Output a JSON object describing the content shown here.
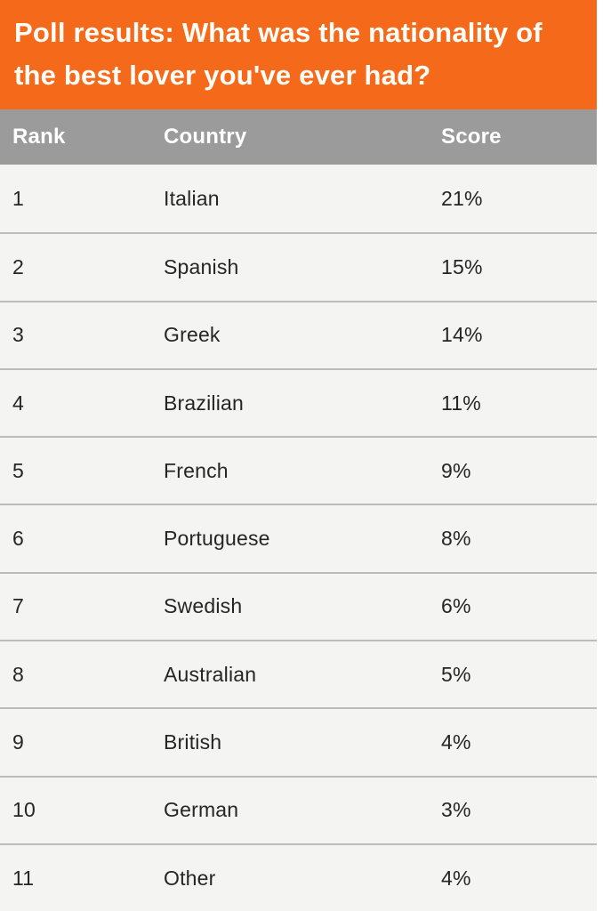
{
  "title": "Poll results: What was the nationality of the best lover you've ever had?",
  "table": {
    "columns": [
      "Rank",
      "Country",
      "Score"
    ],
    "rows": [
      {
        "rank": "1",
        "country": "Italian",
        "score": "21%"
      },
      {
        "rank": "2",
        "country": "Spanish",
        "score": "15%"
      },
      {
        "rank": "3",
        "country": "Greek",
        "score": "14%"
      },
      {
        "rank": "4",
        "country": "Brazilian",
        "score": "11%"
      },
      {
        "rank": "5",
        "country": "French",
        "score": "9%"
      },
      {
        "rank": "6",
        "country": "Portuguese",
        "score": "8%"
      },
      {
        "rank": "7",
        "country": "Swedish",
        "score": "6%"
      },
      {
        "rank": "8",
        "country": "Australian",
        "score": "5%"
      },
      {
        "rank": "9",
        "country": "British",
        "score": "4%"
      },
      {
        "rank": "10",
        "country": "German",
        "score": "3%"
      },
      {
        "rank": "11",
        "country": "Other",
        "score": "4%"
      }
    ]
  },
  "colors": {
    "accent": "#F5691B",
    "header_gray": "#9B9B9B",
    "row_bg": "#F4F4F2",
    "divider": "#BCBCBC",
    "text": "#252525",
    "title_text": "#FFFDF8"
  },
  "chart_data": {
    "type": "table",
    "title": "Poll results: What was the nationality of the best lover you've ever had?",
    "columns": [
      "Rank",
      "Country",
      "Score"
    ],
    "categories": [
      "Italian",
      "Spanish",
      "Greek",
      "Brazilian",
      "French",
      "Portuguese",
      "Swedish",
      "Australian",
      "British",
      "German",
      "Other"
    ],
    "values": [
      21,
      15,
      14,
      11,
      9,
      8,
      6,
      5,
      4,
      3,
      4
    ],
    "value_unit": "%"
  }
}
